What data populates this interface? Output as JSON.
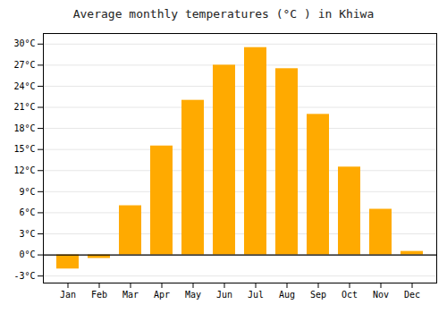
{
  "chart_data": {
    "type": "bar",
    "title": "Average monthly temperatures (°C ) in Khiwa",
    "categories": [
      "Jan",
      "Feb",
      "Mar",
      "Apr",
      "May",
      "Jun",
      "Jul",
      "Aug",
      "Sep",
      "Oct",
      "Nov",
      "Dec"
    ],
    "values": [
      -2.0,
      -0.5,
      7.0,
      15.5,
      22.0,
      27.0,
      29.5,
      26.5,
      20.0,
      12.5,
      6.5,
      0.5
    ],
    "color": "#FFAA00",
    "ylim": [
      -4.0,
      31.5
    ],
    "yticks": [
      {
        "value": -3,
        "label": "-3°C"
      },
      {
        "value": 0,
        "label": "0°C"
      },
      {
        "value": 3,
        "label": "3°C"
      },
      {
        "value": 6,
        "label": "6°C"
      },
      {
        "value": 9,
        "label": "9°C"
      },
      {
        "value": 12,
        "label": "12°C"
      },
      {
        "value": 15,
        "label": "15°C"
      },
      {
        "value": 18,
        "label": "18°C"
      },
      {
        "value": 21,
        "label": "21°C"
      },
      {
        "value": 24,
        "label": "24°C"
      },
      {
        "value": 27,
        "label": "27°C"
      },
      {
        "value": 30,
        "label": "30°C"
      }
    ],
    "grid": true
  }
}
